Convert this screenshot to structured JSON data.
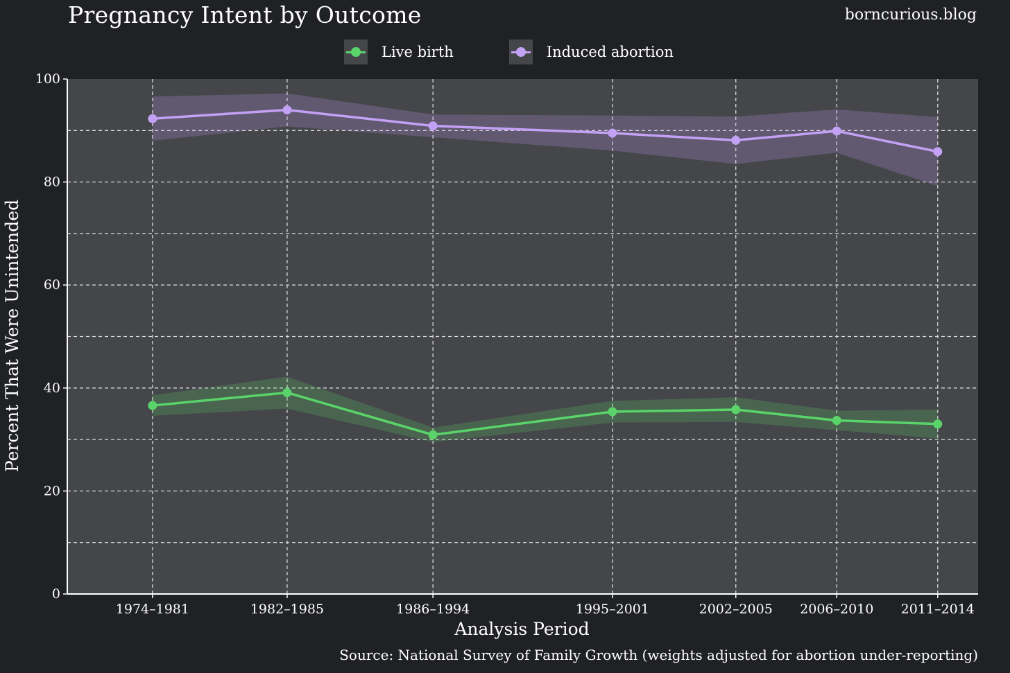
{
  "title": "Pregnancy Intent by Outcome",
  "site": "borncurious.blog",
  "source": "Source: National Survey of Family Growth (weights adjusted for abortion under-reporting)",
  "colors": {
    "background": "#202124",
    "panel": "#45464a",
    "grid": "#d9d9d9",
    "live_birth": "#5ad46a",
    "induced_abortion": "#c3a1f5"
  },
  "chart_data": {
    "type": "line",
    "title": "Pregnancy Intent by Outcome",
    "xlabel": "Analysis Period",
    "ylabel": "Percent That Were Unintended",
    "ylim": [
      0,
      100
    ],
    "yticks": [
      0,
      20,
      40,
      60,
      80,
      100
    ],
    "grid": true,
    "legend_position": "top",
    "categories": [
      "1974–1981",
      "1982–1985",
      "1986–1994",
      "1995–2001",
      "2002–2005",
      "2006–2010",
      "2011–2014"
    ],
    "x": [
      1977.5,
      1983.5,
      1990,
      1998,
      2003.5,
      2008,
      2012.5
    ],
    "xlim": [
      1973.7,
      2014.3
    ],
    "series": [
      {
        "name": "Live birth",
        "color": "#5ad46a",
        "values": [
          36.6,
          39.1,
          30.9,
          35.4,
          35.8,
          33.7,
          33.0
        ],
        "lower": [
          34.6,
          36.0,
          29.5,
          33.3,
          33.4,
          31.8,
          30.2
        ],
        "upper": [
          38.6,
          42.2,
          32.3,
          37.5,
          38.2,
          35.6,
          35.8
        ]
      },
      {
        "name": "Induced abortion",
        "color": "#c3a1f5",
        "values": [
          92.3,
          94.0,
          90.9,
          89.5,
          88.1,
          89.9,
          85.9
        ],
        "lower": [
          88.0,
          90.8,
          88.7,
          86.1,
          83.5,
          85.7,
          79.2
        ],
        "upper": [
          96.6,
          97.2,
          93.1,
          92.9,
          92.7,
          94.1,
          92.6
        ]
      }
    ]
  }
}
